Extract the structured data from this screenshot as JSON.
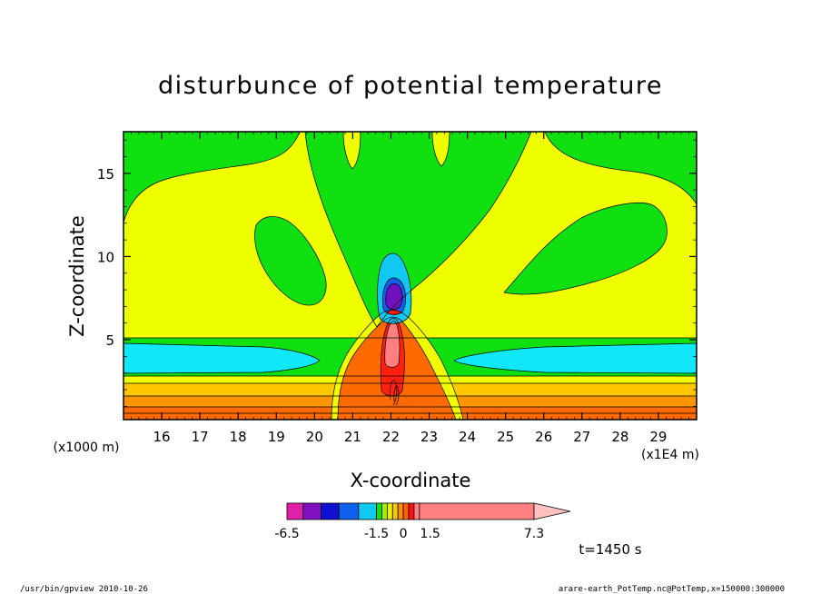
{
  "chart_data": {
    "type": "contour",
    "title": "disturbunce of potential temperature",
    "xlabel": "X-coordinate",
    "ylabel": "Z-coordinate",
    "x_unit": "(x1E4 m)",
    "y_unit": "(x1000 m)",
    "xlim": [
      15.0,
      30.0
    ],
    "ylim": [
      0.2,
      17.5
    ],
    "x_ticks": [
      16,
      17,
      18,
      19,
      20,
      21,
      22,
      23,
      24,
      25,
      26,
      27,
      28,
      29
    ],
    "y_ticks": [
      5,
      10,
      15
    ],
    "time_label": "t=1450 s",
    "colorbar": {
      "levels": [
        -6.5,
        -5.6,
        -4.6,
        -3.6,
        -2.5,
        -1.5,
        -1.2,
        -0.9,
        -0.6,
        -0.3,
        0,
        0.3,
        0.6,
        0.9,
        1.2,
        1.5,
        2.5,
        3.6,
        4.6,
        5.6,
        6.5,
        7.3
      ],
      "labels": [
        "-6.5",
        "-1.5",
        "0",
        "1.5",
        "7.3"
      ],
      "colors": [
        "#e020a8",
        "#8010c0",
        "#1010d0",
        "#1060f0",
        "#10c8f0",
        "#10e010",
        "#a0f000",
        "#f0f000",
        "#f8c800",
        "#f89000",
        "#ff6000",
        "#ff1010",
        "#ff8080",
        "#ffc0c0"
      ]
    },
    "levels_color_map": {
      "background_band": "#f0ff00",
      "positive_low": "#ffc800",
      "positive_mid": "#ff9600",
      "positive_high": "#ff6a00",
      "hot_core": "#ff8080",
      "negative_small": "#10e010",
      "negative_mid": "#10e8f8",
      "cold_core": "#7010c0"
    }
  },
  "footer": {
    "left": "/usr/bin/gpview   2010-10-26",
    "right": "arare-earth_PotTemp.nc@PotTemp,x=150000:300000"
  }
}
